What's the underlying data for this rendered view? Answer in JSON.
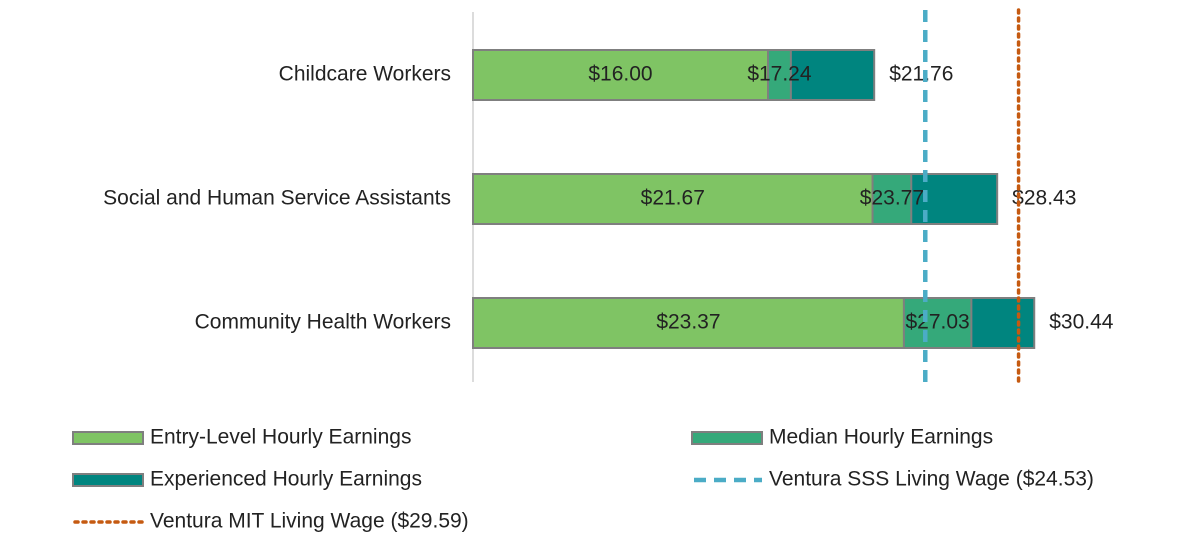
{
  "chart_data": {
    "type": "bar",
    "orientation": "horizontal",
    "overlap": true,
    "categories": [
      "Childcare Workers",
      "Social and Human Service Assistants",
      "Community Health Workers"
    ],
    "series": [
      {
        "name": "Entry-Level Hourly Earnings",
        "color": "#7fc464",
        "values": [
          16.0,
          21.67,
          23.37
        ],
        "value_labels": [
          "$16.00",
          "$21.67",
          "$23.37"
        ]
      },
      {
        "name": "Median Hourly Earnings",
        "color": "#35a97a",
        "values": [
          17.24,
          23.77,
          27.03
        ],
        "value_labels": [
          "$17.24",
          "$23.77",
          "$27.03"
        ]
      },
      {
        "name": "Experienced Hourly Earnings",
        "color": "#00857f",
        "values": [
          21.76,
          28.43,
          30.44
        ],
        "value_labels": [
          "$21.76",
          "$28.43",
          "$30.44"
        ]
      }
    ],
    "reference_lines": [
      {
        "name": "Ventura SSS Living Wage ($24.53)",
        "value": 24.53,
        "color": "#4bacc6",
        "style": "dashed"
      },
      {
        "name": "Ventura MIT Living Wage ($29.59)",
        "value": 29.59,
        "color": "#c55a11",
        "style": "dotted"
      }
    ],
    "xlim": [
      0,
      32
    ]
  }
}
